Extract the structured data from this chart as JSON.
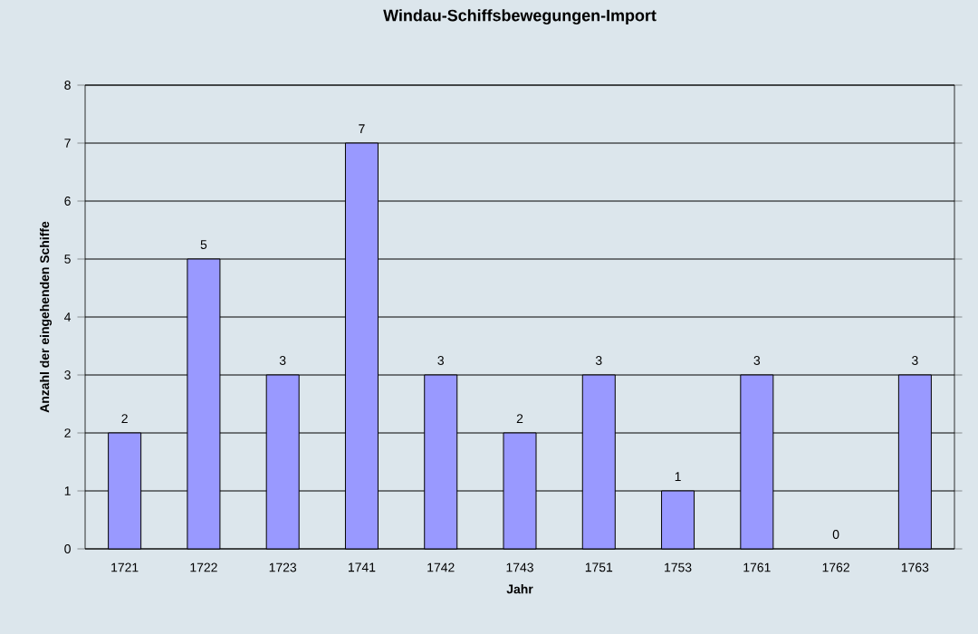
{
  "chart_data": {
    "type": "bar",
    "title": "Windau-Schiffsbewegungen-Import",
    "xlabel": "Jahr",
    "ylabel": "Anzahl der eingehenden Schiffe",
    "categories": [
      "1721",
      "1722",
      "1723",
      "1741",
      "1742",
      "1743",
      "1751",
      "1753",
      "1761",
      "1762",
      "1763"
    ],
    "values": [
      2,
      5,
      3,
      7,
      3,
      2,
      3,
      1,
      3,
      0,
      3
    ],
    "color": "#9999ff",
    "ylim": [
      0,
      8
    ],
    "yticks": [
      0,
      1,
      2,
      3,
      4,
      5,
      6,
      7,
      8
    ],
    "grid": "y",
    "data_labels": true
  }
}
